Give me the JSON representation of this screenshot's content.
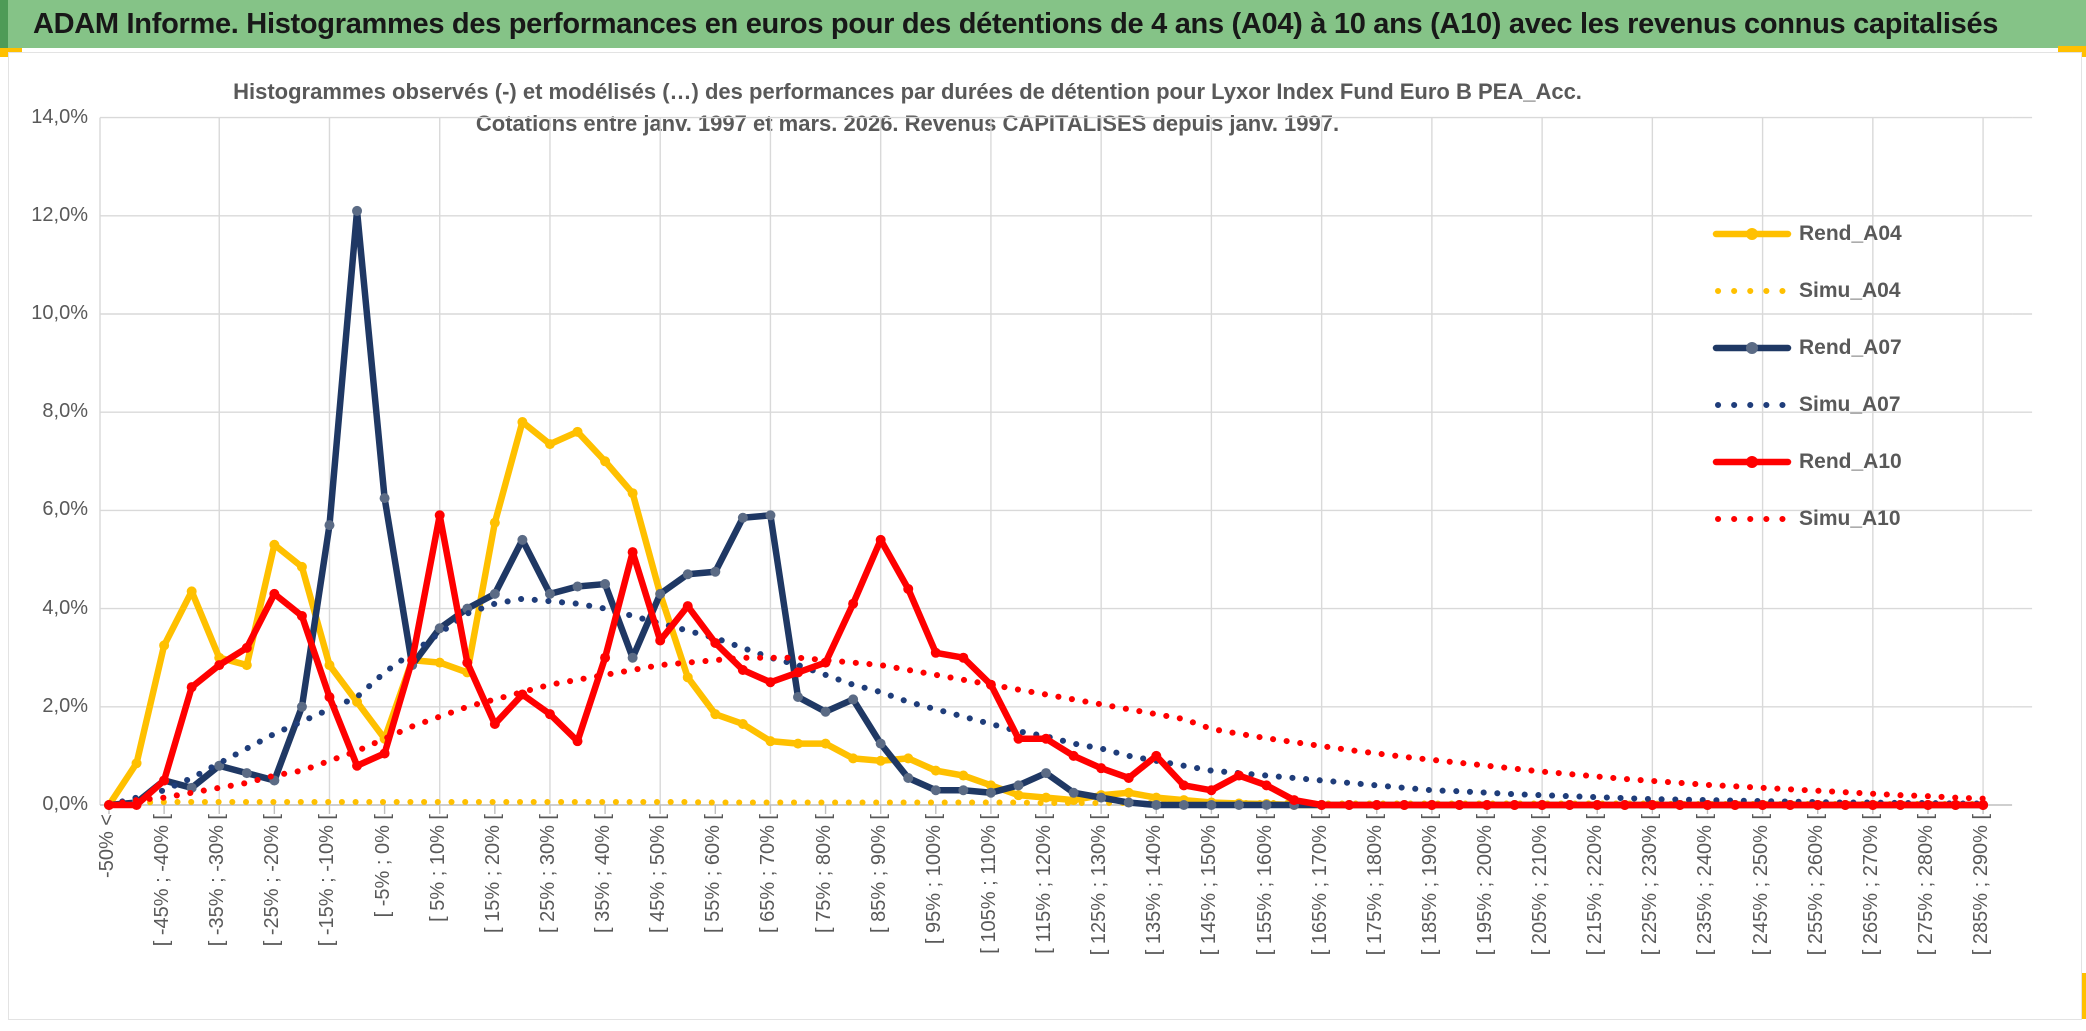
{
  "header": {
    "title": "ADAM Informe. Histogrammes des performances en euros pour des détentions de 4 ans (A04) à 10 ans (A10) avec les revenus connus capitalisés"
  },
  "chart": {
    "title_line1": "Histogrammes observés (-) et modélisés (…) des performances par durées de détention pour Lyxor Index Fund Euro B PEA_Acc.",
    "title_line2": "Cotations entre janv. 1997 et mars. 2026. Revenus CAPITALISES depuis janv. 1997.",
    "colors": {
      "banner_green": "#85C387",
      "banner_accent_green": "#4E9B57",
      "gold": "#FFC000",
      "navy": "#1F3864",
      "navy_dotted": "#1F3D7A",
      "navy_marker": "#5B6B85",
      "red": "#FF0000",
      "gridline": "#D9D9D9",
      "axis_line": "#BFBFBF",
      "label_gray": "#595959"
    }
  },
  "chart_data": {
    "type": "line",
    "title": "Histogrammes observés (-) et modélisés (…) des performances par durées de détention pour Lyxor Index Fund Euro B PEA_Acc. Cotations entre janv. 1997 et mars. 2026. Revenus CAPITALISES depuis janv. 1997.",
    "xlabel": "",
    "ylabel": "",
    "ylim_percent": [
      0,
      14
    ],
    "grid": true,
    "legend_position": "right",
    "y_tick_labels": [
      "0,0%",
      "2,0%",
      "4,0%",
      "6,0%",
      "8,0%",
      "10,0%",
      "12,0%",
      "14,0%"
    ],
    "y_tick_values": [
      0,
      2,
      4,
      6,
      8,
      10,
      12,
      14
    ],
    "categories": [
      "-50% <",
      "",
      "[ -45% ; -40% [",
      "",
      "[ -35% ; -30% [",
      "",
      "[ -25% ; -20% [",
      "",
      "[ -15% ; -10% [",
      "",
      "[ -5% ; 0% [",
      "",
      "[ 5% ; 10% [",
      "",
      "[ 15% ; 20% [",
      "",
      "[ 25% ; 30% [",
      "",
      "[ 35% ; 40% [",
      "",
      "[ 45% ; 50% [",
      "",
      "[ 55% ; 60% [",
      "",
      "[ 65% ; 70% [",
      "",
      "[ 75% ; 80% [",
      "",
      "[ 85% ; 90% [",
      "",
      "[ 95% ; 100% [",
      "",
      "[ 105% ; 110% [",
      "",
      "[ 115% ; 120% [",
      "",
      "[ 125% ; 130% [",
      "",
      "[ 135% ; 140% [",
      "",
      "[ 145% ; 150% [",
      "",
      "[ 155% ; 160% [",
      "",
      "[ 165% ; 170% [",
      "",
      "[ 175% ; 180% [",
      "",
      "[ 185% ; 190% [",
      "",
      "[ 195% ; 200% [",
      "",
      "[ 205% ; 210% [",
      "",
      "[ 215% ; 220% [",
      "",
      "[ 225% ; 230% [",
      "",
      "[ 235% ; 240% [",
      "",
      "[ 245% ; 250% [",
      "",
      "[ 255% ; 260% [",
      "",
      "[ 265% ; 270% [",
      "",
      "[ 275% ; 280% [",
      "",
      "[ 285% ; 290% ["
    ],
    "series": [
      {
        "name": "Rend_A04",
        "color": "#FFC000",
        "style": "solid",
        "marker_color": "#FFC000",
        "values": [
          0,
          0.85,
          3.25,
          4.35,
          3.0,
          2.85,
          5.3,
          4.85,
          2.85,
          2.1,
          1.35,
          2.95,
          2.9,
          2.7,
          5.75,
          7.8,
          7.35,
          7.6,
          7.0,
          6.35,
          4.3,
          2.6,
          1.85,
          1.65,
          1.3,
          1.25,
          1.25,
          0.95,
          0.9,
          0.95,
          0.7,
          0.6,
          0.4,
          0.2,
          0.15,
          0.1,
          0.2,
          0.25,
          0.15,
          0.1,
          0.05,
          0.03,
          0.02,
          0,
          0,
          0,
          0,
          0,
          0,
          0,
          0,
          0,
          0,
          0,
          0,
          0,
          0,
          0,
          0,
          0,
          0,
          0,
          0,
          0,
          0,
          0,
          0,
          0,
          0
        ]
      },
      {
        "name": "Simu_A04",
        "color": "#FFC000",
        "style": "dotted",
        "marker_color": "#FFC000",
        "values": [
          0.02,
          0.05,
          0.06,
          0.06,
          0.06,
          0.06,
          0.06,
          0.06,
          0.06,
          0.06,
          0.06,
          0.06,
          0.06,
          0.06,
          0.06,
          0.06,
          0.06,
          0.06,
          0.06,
          0.06,
          0.06,
          0.06,
          0.05,
          0.05,
          0.05,
          0.05,
          0.05,
          0.05,
          0.05,
          0.05,
          0.05,
          0.05,
          0.05,
          0.05,
          0.04,
          0.04,
          0.04,
          0.04,
          0.04,
          0.04,
          0.04,
          0.04,
          0.04,
          0.04,
          0.03,
          0.03,
          0.03,
          0.03,
          0.03,
          0.03,
          0.03,
          0.03,
          0.03,
          0.03,
          0.03,
          0.03,
          0.03,
          0.02,
          0.02,
          0.02,
          0.02,
          0.02,
          0.02,
          0.02,
          0.02,
          0.02,
          0.02,
          0.02,
          0.02
        ]
      },
      {
        "name": "Rend_A07",
        "color": "#1F3864",
        "style": "solid",
        "marker_color": "#5B6B85",
        "values": [
          0,
          0.05,
          0.5,
          0.35,
          0.8,
          0.65,
          0.5,
          2.0,
          5.7,
          12.1,
          6.25,
          2.85,
          3.6,
          4.0,
          4.3,
          5.4,
          4.3,
          4.45,
          4.5,
          3.0,
          4.3,
          4.7,
          4.75,
          5.85,
          5.9,
          2.2,
          1.9,
          2.15,
          1.25,
          0.55,
          0.3,
          0.3,
          0.25,
          0.4,
          0.65,
          0.25,
          0.15,
          0.05,
          0,
          0,
          0,
          0,
          0,
          0,
          0,
          0,
          0,
          0,
          0,
          0,
          0,
          0,
          0,
          0,
          0,
          0,
          0,
          0,
          0,
          0,
          0,
          0,
          0,
          0,
          0,
          0,
          0,
          0,
          0
        ]
      },
      {
        "name": "Simu_A07",
        "color": "#1F3D7A",
        "style": "dotted",
        "marker_color": "#1F3D7A",
        "values": [
          0,
          0.15,
          0.3,
          0.55,
          0.85,
          1.15,
          1.45,
          1.7,
          1.95,
          2.2,
          2.7,
          3.1,
          3.5,
          3.9,
          4.1,
          4.2,
          4.15,
          4.1,
          4.0,
          3.85,
          3.7,
          3.55,
          3.4,
          3.2,
          3.0,
          2.85,
          2.65,
          2.45,
          2.3,
          2.1,
          1.95,
          1.8,
          1.65,
          1.5,
          1.4,
          1.25,
          1.15,
          1.0,
          0.9,
          0.8,
          0.7,
          0.65,
          0.6,
          0.55,
          0.5,
          0.45,
          0.4,
          0.35,
          0.3,
          0.28,
          0.25,
          0.22,
          0.2,
          0.18,
          0.16,
          0.14,
          0.12,
          0.11,
          0.1,
          0.09,
          0.08,
          0.07,
          0.06,
          0.05,
          0.05,
          0.04,
          0.04,
          0.03,
          0.03
        ]
      },
      {
        "name": "Rend_A10",
        "color": "#FF0000",
        "style": "solid",
        "marker_color": "#FF0000",
        "values": [
          0,
          0,
          0.5,
          2.4,
          2.85,
          3.2,
          4.3,
          3.85,
          2.2,
          0.8,
          1.05,
          2.95,
          5.9,
          2.9,
          1.65,
          2.25,
          1.85,
          1.3,
          3.0,
          5.15,
          3.35,
          4.05,
          3.3,
          2.75,
          2.5,
          2.7,
          2.9,
          4.1,
          5.4,
          4.4,
          3.1,
          3.0,
          2.45,
          1.35,
          1.35,
          1.0,
          0.75,
          0.55,
          1.0,
          0.4,
          0.3,
          0.6,
          0.4,
          0.1,
          0,
          0,
          0,
          0,
          0,
          0,
          0,
          0,
          0,
          0,
          0,
          0,
          0,
          0,
          0,
          0,
          0,
          0,
          0,
          0,
          0,
          0,
          0,
          0,
          0
        ]
      },
      {
        "name": "Simu_A10",
        "color": "#FF0000",
        "style": "dotted",
        "marker_color": "#FF0000",
        "values": [
          0,
          0.1,
          0.15,
          0.25,
          0.35,
          0.45,
          0.6,
          0.7,
          0.9,
          1.1,
          1.35,
          1.6,
          1.8,
          2.0,
          2.15,
          2.3,
          2.45,
          2.55,
          2.65,
          2.75,
          2.85,
          2.9,
          2.95,
          3.0,
          3.0,
          3.0,
          2.95,
          2.9,
          2.85,
          2.75,
          2.65,
          2.55,
          2.45,
          2.35,
          2.25,
          2.15,
          2.05,
          1.95,
          1.85,
          1.75,
          1.55,
          1.45,
          1.36,
          1.28,
          1.2,
          1.12,
          1.05,
          0.98,
          0.92,
          0.86,
          0.8,
          0.74,
          0.68,
          0.63,
          0.58,
          0.53,
          0.49,
          0.45,
          0.41,
          0.38,
          0.35,
          0.32,
          0.29,
          0.26,
          0.23,
          0.2,
          0.18,
          0.15,
          0.13
        ]
      }
    ]
  }
}
